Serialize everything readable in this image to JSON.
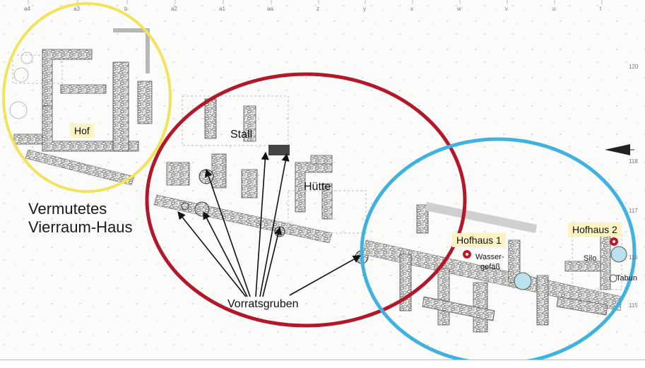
{
  "figure": {
    "labels": {
      "hof": "Hof",
      "stall": "Stall",
      "huette": "Hütte",
      "vierraum_line1": "Vermutetes",
      "vierraum_line2": "Vierraum-Haus",
      "vorratsgruben": "Vorratsgruben",
      "hofhaus1": "Hofhaus 1",
      "hofhaus2": "Hofhaus 2",
      "wasser_line1": "Wasser-",
      "wasser_line2": "gefäß",
      "silo": "Silo",
      "tabun": "Tabun"
    },
    "grid_top": [
      "a4",
      "a3",
      "b",
      "a2",
      "a1",
      "aa",
      "z",
      "y",
      "x",
      "w",
      "v",
      "u",
      "t"
    ],
    "grid_right": [
      "120",
      "118",
      "117",
      "116",
      "115"
    ],
    "colors": {
      "yellow_circle": "#f2e35a",
      "red_circle": "#b3182a",
      "blue_circle": "#3fb2e0",
      "label_background": "#fcf3c4",
      "arrow": "#111111",
      "red_dot": "#c0182a",
      "silo_fill": "#b9e2ee"
    }
  }
}
